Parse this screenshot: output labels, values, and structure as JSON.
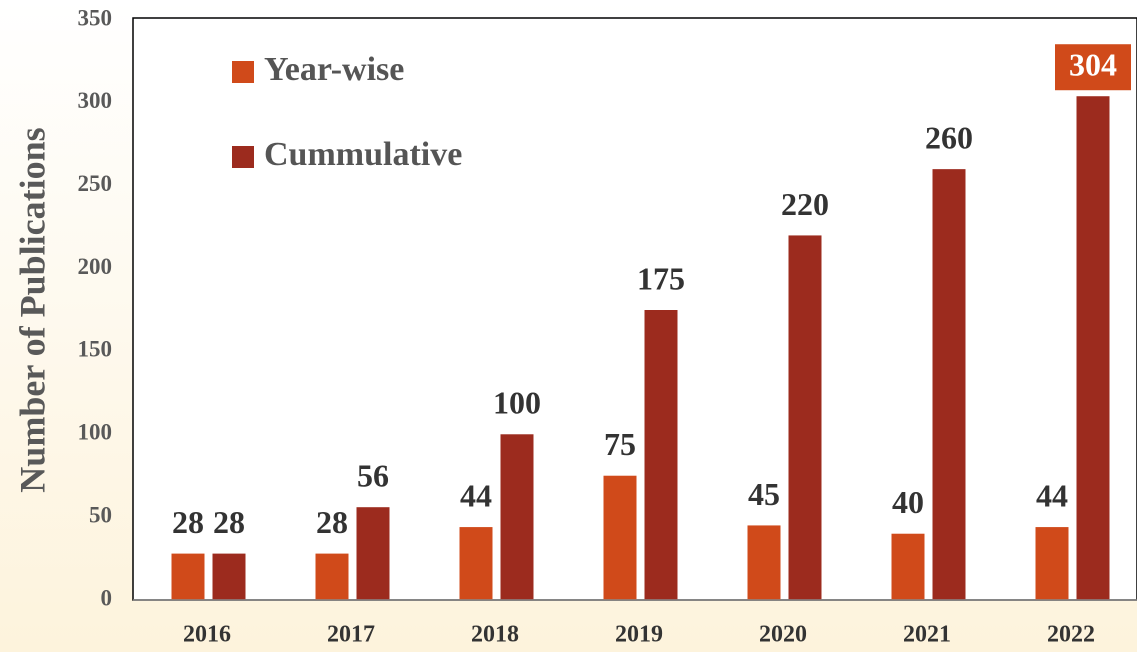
{
  "chart_data": {
    "type": "bar",
    "y_label": "Number of Publications",
    "categories": [
      "2016",
      "2017",
      "2018",
      "2019",
      "2020",
      "2021",
      "2022"
    ],
    "series": [
      {
        "name": "Year-wise",
        "color": "#d04a1a",
        "values": [
          28,
          28,
          44,
          75,
          45,
          40,
          44
        ]
      },
      {
        "name": "Cummulative",
        "color": "#9c2b1e",
        "values": [
          28,
          56,
          100,
          175,
          220,
          260,
          304
        ]
      }
    ],
    "ylim": [
      0,
      350
    ],
    "yticks": [
      0,
      50,
      100,
      150,
      200,
      250,
      300,
      350
    ],
    "grid": false
  }
}
